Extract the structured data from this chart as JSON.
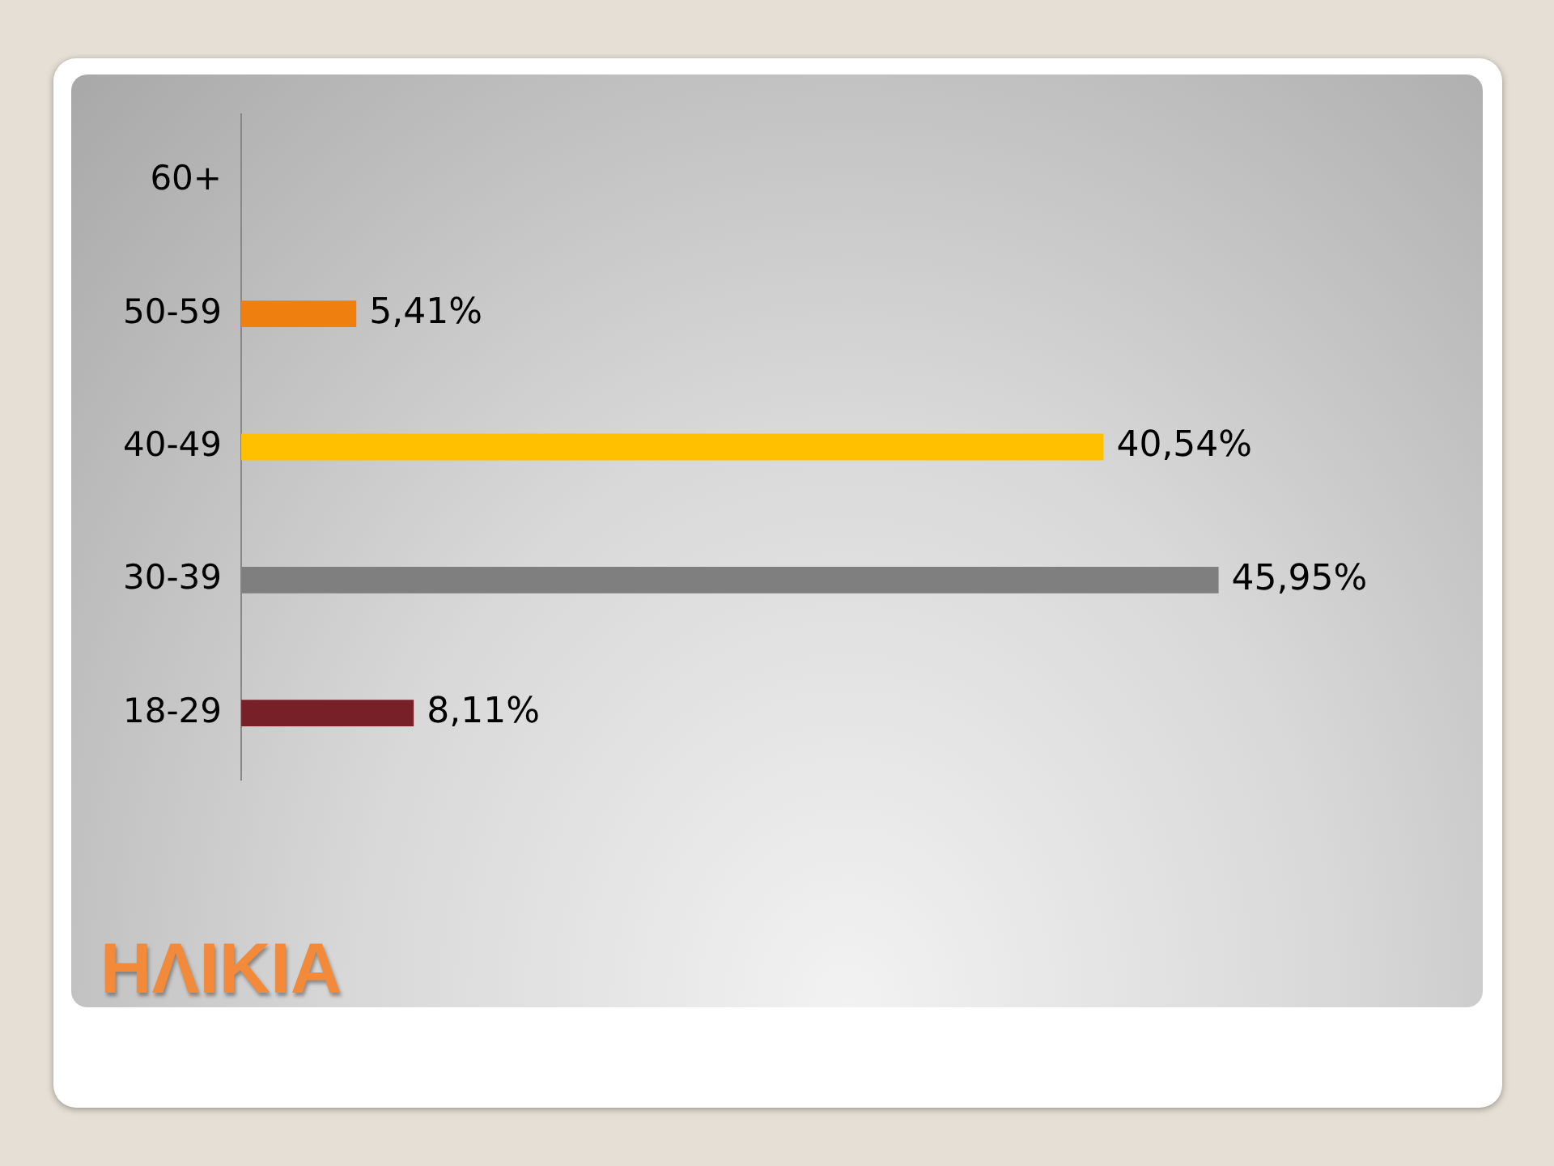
{
  "chart_data": {
    "type": "bar",
    "orientation": "horizontal",
    "title": "ΗΛΙΚΙΑ",
    "categories": [
      "60+",
      "50-59",
      "40-49",
      "30-39",
      "18-29"
    ],
    "values": [
      null,
      5.41,
      40.54,
      45.95,
      8.11
    ],
    "colors": [
      "#7f7f7f",
      "#ef7f0f",
      "#ffc000",
      "#7f7f7f",
      "#772028"
    ],
    "value_labels": [
      null,
      "5,41%",
      "40,54%",
      "45,95%",
      "8,11%"
    ],
    "grid": false,
    "legend": false
  }
}
